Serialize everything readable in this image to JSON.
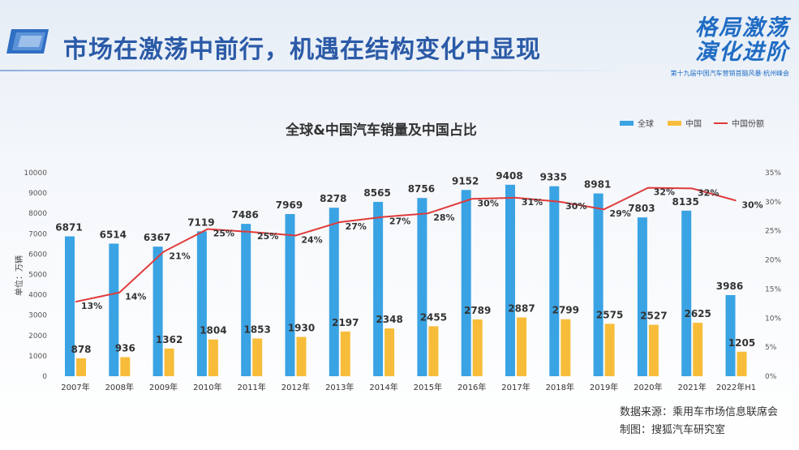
{
  "header": {
    "title": "市场在激荡中前行，机遇在结构变化中显现",
    "brand_line1": "格局激荡",
    "brand_line2": "演化进阶",
    "brand_sub": "第十九届中国汽车营销首脑风暴·杭州峰会"
  },
  "chart_data": {
    "type": "bar",
    "title": "全球&中国汽车销量及中国占比",
    "ylabel": "单位：万辆",
    "ylim": [
      0,
      10000
    ],
    "yticks": [
      "0",
      "1000",
      "2000",
      "3000",
      "4000",
      "5000",
      "6000",
      "7000",
      "8000",
      "9000",
      "10000"
    ],
    "y2lim": [
      0,
      35
    ],
    "y2ticks": [
      "0%",
      "5%",
      "10%",
      "15%",
      "20%",
      "25%",
      "30%",
      "35%"
    ],
    "categories": [
      "2007年",
      "2008年",
      "2009年",
      "2010年",
      "2011年",
      "2012年",
      "2013年",
      "2014年",
      "2015年",
      "2016年",
      "2017年",
      "2018年",
      "2019年",
      "2020年",
      "2021年",
      "2022年H1"
    ],
    "series": [
      {
        "name": "全球",
        "type": "bar",
        "axis": "left",
        "color": "#3aa3e3",
        "values": [
          6871,
          6514,
          6367,
          7119,
          7486,
          7969,
          8278,
          8565,
          8756,
          9152,
          9408,
          9335,
          8981,
          7803,
          8135,
          3986
        ],
        "labels": [
          "6871",
          "6514",
          "6367",
          "7119",
          "7486",
          "7969",
          "8278",
          "8565",
          "8756",
          "9152",
          "9408",
          "9335",
          "8981",
          "7803",
          "8135",
          "3986"
        ]
      },
      {
        "name": "中国",
        "type": "bar",
        "axis": "left",
        "color": "#f7bd3a",
        "values": [
          878,
          936,
          1362,
          1804,
          1853,
          1930,
          2197,
          2348,
          2455,
          2789,
          2887,
          2799,
          2575,
          2527,
          2625,
          1205
        ],
        "labels": [
          "878",
          "936",
          "1362",
          "1804",
          "1853",
          "1930",
          "2197",
          "2348",
          "2455",
          "2789",
          "2887",
          "2799",
          "2575",
          "2527",
          "2625",
          "1205"
        ]
      },
      {
        "name": "中国份额",
        "type": "line",
        "axis": "right",
        "color": "#e03a3a",
        "values": [
          12.8,
          14.4,
          21.4,
          25.3,
          24.8,
          24.2,
          26.5,
          27.4,
          28.0,
          30.5,
          30.7,
          30.0,
          28.7,
          32.4,
          32.3,
          30.2
        ],
        "labels": [
          "13%",
          "14%",
          "21%",
          "25%",
          "25%",
          "24%",
          "27%",
          "27%",
          "28%",
          "30%",
          "31%",
          "30%",
          "29%",
          "32%",
          "32%",
          "30%"
        ]
      }
    ],
    "legend_position": "top-right",
    "grid": false
  },
  "source": {
    "line1": "数据来源：乘用车市场信息联席会",
    "line2": "制图：搜狐汽车研究室"
  }
}
